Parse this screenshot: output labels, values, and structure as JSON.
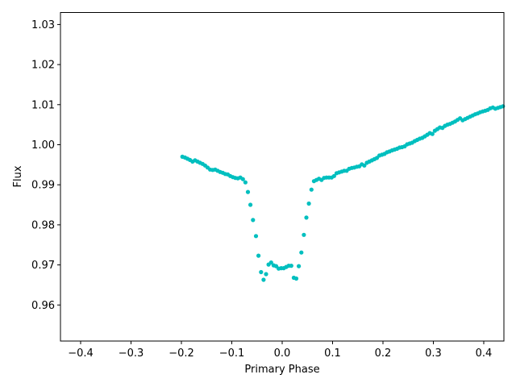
{
  "chart_data": {
    "type": "scatter",
    "title": "",
    "xlabel": "Primary Phase",
    "ylabel": "Flux",
    "xlim": [
      -0.44,
      0.44
    ],
    "ylim": [
      0.951,
      1.033
    ],
    "xticks": [
      -0.4,
      -0.3,
      -0.2,
      -0.1,
      0.0,
      0.1,
      0.2,
      0.3,
      0.4
    ],
    "xtick_labels": [
      "−0.4",
      "−0.3",
      "−0.2",
      "−0.1",
      "0.0",
      "0.1",
      "0.2",
      "0.3",
      "0.4"
    ],
    "yticks": [
      0.96,
      0.97,
      0.98,
      0.99,
      1.0,
      1.01,
      1.02,
      1.03
    ],
    "ytick_labels": [
      "0.96",
      "0.97",
      "0.98",
      "0.99",
      "1.00",
      "1.01",
      "1.02",
      "1.03"
    ],
    "grid": false,
    "color": "#00bfbf",
    "series": [
      {
        "points": [
          [
            -0.198,
            0.997
          ],
          [
            -0.193,
            0.9968
          ],
          [
            -0.188,
            0.9965
          ],
          [
            -0.183,
            0.9962
          ],
          [
            -0.178,
            0.9958
          ],
          [
            -0.173,
            0.9961
          ],
          [
            -0.168,
            0.9958
          ],
          [
            -0.163,
            0.9955
          ],
          [
            -0.158,
            0.9952
          ],
          [
            -0.153,
            0.9948
          ],
          [
            -0.148,
            0.9943
          ],
          [
            -0.143,
            0.9938
          ],
          [
            -0.138,
            0.9937
          ],
          [
            -0.133,
            0.9938
          ],
          [
            -0.128,
            0.9935
          ],
          [
            -0.123,
            0.9932
          ],
          [
            -0.118,
            0.993
          ],
          [
            -0.113,
            0.9927
          ],
          [
            -0.108,
            0.9926
          ],
          [
            -0.103,
            0.9922
          ],
          [
            -0.098,
            0.9919
          ],
          [
            -0.093,
            0.9917
          ],
          [
            -0.088,
            0.9916
          ],
          [
            -0.083,
            0.9918
          ],
          [
            -0.078,
            0.9914
          ],
          [
            -0.073,
            0.9906
          ],
          [
            -0.068,
            0.9882
          ],
          [
            -0.063,
            0.985
          ],
          [
            -0.058,
            0.9812
          ],
          [
            -0.052,
            0.9772
          ],
          [
            -0.047,
            0.9723
          ],
          [
            -0.042,
            0.9682
          ],
          [
            -0.037,
            0.9663
          ],
          [
            -0.032,
            0.9677
          ],
          [
            -0.027,
            0.9701
          ],
          [
            -0.022,
            0.9706
          ],
          [
            -0.017,
            0.9699
          ],
          [
            -0.012,
            0.9697
          ],
          [
            -0.007,
            0.9691
          ],
          [
            -0.002,
            0.9692
          ],
          [
            0.003,
            0.9692
          ],
          [
            0.008,
            0.9695
          ],
          [
            0.013,
            0.9698
          ],
          [
            0.018,
            0.9698
          ],
          [
            0.023,
            0.9668
          ],
          [
            0.028,
            0.9666
          ],
          [
            0.033,
            0.9697
          ],
          [
            0.038,
            0.9731
          ],
          [
            0.043,
            0.9775
          ],
          [
            0.048,
            0.9818
          ],
          [
            0.053,
            0.9853
          ],
          [
            0.058,
            0.9888
          ],
          [
            0.063,
            0.9909
          ],
          [
            0.068,
            0.9912
          ],
          [
            0.073,
            0.9915
          ],
          [
            0.078,
            0.9912
          ],
          [
            0.083,
            0.9917
          ],
          [
            0.088,
            0.9918
          ],
          [
            0.093,
            0.9918
          ],
          [
            0.098,
            0.9918
          ],
          [
            0.103,
            0.9922
          ],
          [
            0.108,
            0.9929
          ],
          [
            0.113,
            0.9931
          ],
          [
            0.118,
            0.9933
          ],
          [
            0.123,
            0.9935
          ],
          [
            0.128,
            0.9935
          ],
          [
            0.133,
            0.994
          ],
          [
            0.138,
            0.9942
          ],
          [
            0.143,
            0.9943
          ],
          [
            0.148,
            0.9945
          ],
          [
            0.153,
            0.9946
          ],
          [
            0.158,
            0.9951
          ],
          [
            0.163,
            0.9948
          ],
          [
            0.168,
            0.9955
          ],
          [
            0.173,
            0.9958
          ],
          [
            0.178,
            0.9961
          ],
          [
            0.183,
            0.9964
          ],
          [
            0.188,
            0.9967
          ],
          [
            0.193,
            0.9973
          ],
          [
            0.198,
            0.9975
          ],
          [
            0.203,
            0.9977
          ],
          [
            0.208,
            0.9981
          ],
          [
            0.213,
            0.9983
          ],
          [
            0.218,
            0.9986
          ],
          [
            0.223,
            0.9988
          ],
          [
            0.228,
            0.999
          ],
          [
            0.233,
            0.9993
          ],
          [
            0.238,
            0.9994
          ],
          [
            0.243,
            0.9996
          ],
          [
            0.248,
            1.0001
          ],
          [
            0.253,
            1.0003
          ],
          [
            0.258,
            1.0005
          ],
          [
            0.263,
            1.0009
          ],
          [
            0.268,
            1.0012
          ],
          [
            0.273,
            1.0015
          ],
          [
            0.278,
            1.0017
          ],
          [
            0.283,
            1.0021
          ],
          [
            0.288,
            1.0025
          ],
          [
            0.293,
            1.0029
          ],
          [
            0.298,
            1.0027
          ],
          [
            0.303,
            1.0035
          ],
          [
            0.308,
            1.0039
          ],
          [
            0.313,
            1.0043
          ],
          [
            0.318,
            1.0042
          ],
          [
            0.323,
            1.0047
          ],
          [
            0.328,
            1.005
          ],
          [
            0.333,
            1.0052
          ],
          [
            0.338,
            1.0055
          ],
          [
            0.343,
            1.0058
          ],
          [
            0.348,
            1.0062
          ],
          [
            0.353,
            1.0066
          ],
          [
            0.358,
            1.0061
          ],
          [
            0.363,
            1.0064
          ],
          [
            0.368,
            1.0067
          ],
          [
            0.373,
            1.007
          ],
          [
            0.378,
            1.0073
          ],
          [
            0.383,
            1.0076
          ],
          [
            0.388,
            1.0078
          ],
          [
            0.393,
            1.0081
          ],
          [
            0.398,
            1.0083
          ],
          [
            0.403,
            1.0085
          ],
          [
            0.408,
            1.0087
          ],
          [
            0.413,
            1.0091
          ],
          [
            0.418,
            1.0093
          ],
          [
            0.423,
            1.009
          ],
          [
            0.428,
            1.0092
          ],
          [
            0.433,
            1.0094
          ],
          [
            0.438,
            1.0096
          ]
        ]
      }
    ]
  }
}
